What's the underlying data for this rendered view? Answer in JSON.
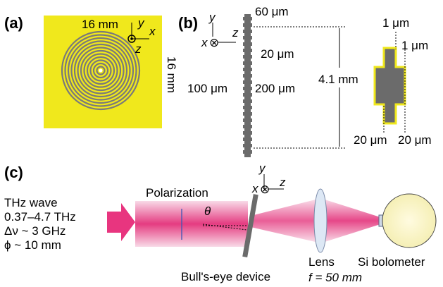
{
  "panel_a": {
    "label": "(a)",
    "width": "16 mm",
    "height": "16 mm",
    "axis_y": "y",
    "axis_x": "x",
    "axis_z": "z"
  },
  "panel_b": {
    "label": "(b)",
    "axis_y": "y",
    "axis_x": "x",
    "axis_z": "z",
    "groove_width": "60 μm",
    "groove_depth": "20 μm",
    "aperture": "100 μm",
    "thickness": "200 μm",
    "length": "4.1 mm",
    "zoom_top": "1 μm",
    "zoom_right": "1 μm",
    "zoom_left_width": "20 μm",
    "zoom_right_width": "20 μm"
  },
  "panel_c": {
    "label": "(c)",
    "source": [
      "THz wave",
      "0.37–4.7 THz",
      "Δν ~ 3 GHz",
      "ϕ ~ 10 mm"
    ],
    "polarization": "Polarization",
    "angle": "θ",
    "axis_y": "y",
    "axis_x": "x",
    "axis_z": "z",
    "device": "Bull's-eye device",
    "lens": "Lens",
    "focal": "f = 50 mm",
    "detector": "Si bolometer"
  }
}
